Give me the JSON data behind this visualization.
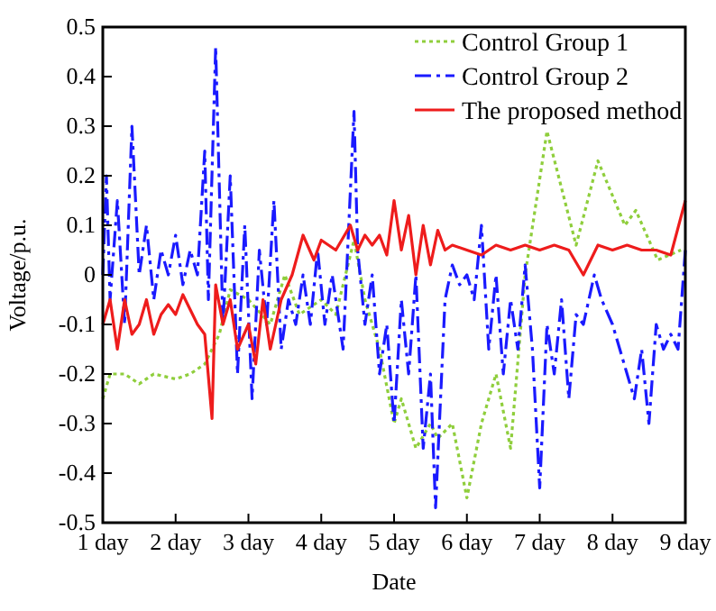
{
  "chart_data": {
    "type": "line",
    "xlabel": "Date",
    "ylabel": "Voltage/p.u.",
    "xlim": [
      1,
      9
    ],
    "ylim": [
      -0.5,
      0.5
    ],
    "xticks": [
      {
        "value": 1,
        "label": "1 day"
      },
      {
        "value": 2,
        "label": "2 day"
      },
      {
        "value": 3,
        "label": "3 day"
      },
      {
        "value": 4,
        "label": "4 day"
      },
      {
        "value": 5,
        "label": "5 day"
      },
      {
        "value": 6,
        "label": "6 day"
      },
      {
        "value": 7,
        "label": "7 day"
      },
      {
        "value": 8,
        "label": "8 day"
      },
      {
        "value": 9,
        "label": "9 day"
      }
    ],
    "yticks": [
      -0.5,
      -0.4,
      -0.3,
      -0.2,
      -0.1,
      0,
      0.1,
      0.2,
      0.3,
      0.4,
      0.5
    ],
    "grid": false,
    "legend": "top right",
    "marker": "none",
    "series": [
      {
        "name": "Control Group 1",
        "color": "#8fce3c",
        "line_style": "dotted",
        "x": [
          1.0,
          1.1,
          1.3,
          1.5,
          1.7,
          2.0,
          2.2,
          2.4,
          2.6,
          2.75,
          3.0,
          3.3,
          3.5,
          3.7,
          4.0,
          4.2,
          4.45,
          4.6,
          4.8,
          5.0,
          5.1,
          5.3,
          5.5,
          5.6,
          5.8,
          6.0,
          6.2,
          6.4,
          6.6,
          6.8,
          7.1,
          7.5,
          7.8,
          8.17,
          8.32,
          8.62,
          8.94
        ],
        "values": [
          -0.25,
          -0.2,
          -0.2,
          -0.22,
          -0.2,
          -0.21,
          -0.2,
          -0.18,
          -0.12,
          -0.03,
          -0.05,
          -0.1,
          0.0,
          -0.08,
          -0.05,
          -0.08,
          0.07,
          -0.05,
          -0.15,
          -0.3,
          -0.25,
          -0.35,
          -0.3,
          -0.33,
          -0.3,
          -0.45,
          -0.3,
          -0.2,
          -0.35,
          0.0,
          0.29,
          0.06,
          0.23,
          0.1,
          0.13,
          0.03,
          0.05
        ]
      },
      {
        "name": "Control Group 2",
        "color": "#1a1aff",
        "line_style": "dashed",
        "x": [
          1.0,
          1.05,
          1.1,
          1.2,
          1.3,
          1.4,
          1.5,
          1.6,
          1.7,
          1.8,
          1.9,
          2.0,
          2.1,
          2.2,
          2.3,
          2.4,
          2.45,
          2.55,
          2.65,
          2.75,
          2.85,
          2.95,
          3.05,
          3.15,
          3.25,
          3.35,
          3.45,
          3.55,
          3.65,
          3.75,
          3.85,
          3.95,
          4.05,
          4.15,
          4.3,
          4.45,
          4.5,
          4.6,
          4.7,
          4.8,
          4.9,
          5.0,
          5.1,
          5.2,
          5.3,
          5.4,
          5.5,
          5.57,
          5.7,
          5.8,
          5.9,
          6.0,
          6.1,
          6.2,
          6.3,
          6.4,
          6.5,
          6.6,
          6.7,
          6.8,
          6.9,
          7.0,
          7.1,
          7.2,
          7.3,
          7.4,
          7.5,
          7.6,
          7.75,
          7.85,
          8.0,
          8.1,
          8.2,
          8.3,
          8.4,
          8.5,
          8.6,
          8.7,
          8.8,
          8.9,
          9.0
        ],
        "values": [
          0.0,
          0.2,
          -0.05,
          0.15,
          -0.1,
          0.3,
          0.0,
          0.1,
          -0.05,
          0.05,
          0.0,
          0.08,
          -0.02,
          0.05,
          0.0,
          0.25,
          -0.05,
          0.46,
          -0.1,
          0.2,
          -0.2,
          0.1,
          -0.25,
          0.05,
          -0.1,
          0.15,
          -0.15,
          -0.05,
          -0.1,
          0.0,
          -0.1,
          0.05,
          -0.1,
          0.0,
          -0.15,
          0.33,
          0.05,
          -0.1,
          0.0,
          -0.2,
          -0.1,
          -0.3,
          -0.05,
          -0.2,
          0.0,
          -0.35,
          -0.2,
          -0.47,
          -0.05,
          0.02,
          -0.02,
          0.0,
          -0.05,
          0.1,
          -0.15,
          0.0,
          -0.2,
          -0.05,
          -0.15,
          0.02,
          -0.15,
          -0.43,
          -0.1,
          -0.2,
          -0.05,
          -0.25,
          -0.08,
          -0.1,
          0.0,
          -0.05,
          -0.1,
          -0.15,
          -0.2,
          -0.25,
          -0.15,
          -0.3,
          -0.1,
          -0.15,
          -0.12,
          -0.15,
          0.05
        ]
      },
      {
        "name": "The proposed method",
        "color": "#ee1c1c",
        "line_style": "solid",
        "x": [
          1.0,
          1.1,
          1.2,
          1.3,
          1.4,
          1.5,
          1.6,
          1.7,
          1.8,
          1.9,
          2.0,
          2.1,
          2.2,
          2.3,
          2.4,
          2.5,
          2.55,
          2.65,
          2.75,
          2.85,
          3.0,
          3.1,
          3.2,
          3.3,
          3.45,
          3.6,
          3.75,
          3.9,
          4.0,
          4.2,
          4.4,
          4.5,
          4.6,
          4.7,
          4.8,
          4.9,
          5.0,
          5.1,
          5.2,
          5.3,
          5.4,
          5.5,
          5.6,
          5.7,
          5.8,
          6.0,
          6.2,
          6.4,
          6.6,
          6.8,
          7.0,
          7.2,
          7.4,
          7.6,
          7.8,
          8.0,
          8.2,
          8.4,
          8.6,
          8.8,
          9.0
        ],
        "values": [
          -0.1,
          -0.05,
          -0.15,
          -0.05,
          -0.12,
          -0.1,
          -0.05,
          -0.12,
          -0.08,
          -0.06,
          -0.08,
          -0.04,
          -0.07,
          -0.1,
          -0.12,
          -0.29,
          -0.02,
          -0.1,
          -0.05,
          -0.15,
          -0.1,
          -0.18,
          -0.05,
          -0.15,
          -0.05,
          0.0,
          0.08,
          0.03,
          0.07,
          0.05,
          0.1,
          0.05,
          0.08,
          0.06,
          0.08,
          0.04,
          0.15,
          0.05,
          0.12,
          0.0,
          0.1,
          0.02,
          0.09,
          0.05,
          0.06,
          0.05,
          0.04,
          0.06,
          0.05,
          0.06,
          0.05,
          0.06,
          0.05,
          0.0,
          0.06,
          0.05,
          0.06,
          0.05,
          0.05,
          0.04,
          0.15
        ]
      }
    ]
  }
}
